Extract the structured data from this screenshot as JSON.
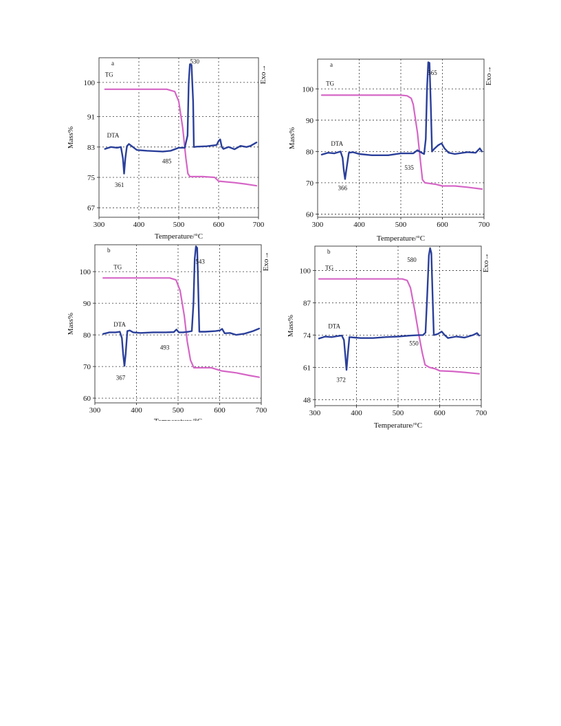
{
  "figure": {
    "colors": {
      "tg": "#d565c6",
      "dta": "#2a3f9a",
      "frame": "#444444",
      "grid": "#333333"
    }
  },
  "chart_data": [
    {
      "type": "line",
      "panel_label": "a",
      "xlabel": "Temperature/°C",
      "ylabel": "Mass%",
      "right_label": "Exo→",
      "xlim": [
        300,
        700
      ],
      "ylim": [
        64.5,
        106.5
      ],
      "xticks": [
        300,
        400,
        500,
        600,
        700
      ],
      "yticks": [
        67,
        75,
        83,
        91,
        100
      ],
      "grid": true,
      "series": [
        {
          "name": "TG",
          "label_at": [
            315,
            101.5
          ],
          "points": [
            [
              315,
              98.2
            ],
            [
              470,
              98.2
            ],
            [
              490,
              97.6
            ],
            [
              500,
              95
            ],
            [
              510,
              88
            ],
            [
              518,
              80
            ],
            [
              523,
              76
            ],
            [
              528,
              75.2
            ],
            [
              560,
              75.2
            ],
            [
              590,
              75
            ],
            [
              600,
              74
            ],
            [
              640,
              73.6
            ],
            [
              670,
              73.2
            ],
            [
              695,
              72.8
            ]
          ]
        },
        {
          "name": "DTA",
          "label_at": [
            320,
            85.5
          ],
          "points": [
            [
              315,
              82.5
            ],
            [
              330,
              83
            ],
            [
              345,
              82.8
            ],
            [
              355,
              83
            ],
            [
              360,
              80
            ],
            [
              363,
              76
            ],
            [
              366,
              80
            ],
            [
              370,
              83.2
            ],
            [
              375,
              83.8
            ],
            [
              385,
              83
            ],
            [
              395,
              82.2
            ],
            [
              420,
              82
            ],
            [
              460,
              81.8
            ],
            [
              480,
              82
            ],
            [
              500,
              82.8
            ],
            [
              515,
              82.8
            ],
            [
              522,
              86
            ],
            [
              525,
              100
            ],
            [
              528,
              104.8
            ],
            [
              532,
              104.6
            ],
            [
              536,
              95
            ],
            [
              538,
              83
            ],
            [
              545,
              83.1
            ],
            [
              570,
              83.2
            ],
            [
              595,
              83.5
            ],
            [
              600,
              84.6
            ],
            [
              604,
              85
            ],
            [
              608,
              83
            ],
            [
              612,
              82.5
            ],
            [
              625,
              83
            ],
            [
              640,
              82.4
            ],
            [
              655,
              83.3
            ],
            [
              670,
              83
            ],
            [
              680,
              83.3
            ],
            [
              695,
              84.2
            ]
          ]
        }
      ],
      "annotations": [
        {
          "text": "530",
          "at": [
            540,
            105
          ]
        },
        {
          "text": "485",
          "at": [
            470,
            78.7
          ]
        },
        {
          "text": "361",
          "at": [
            351,
            72.5
          ]
        }
      ]
    },
    {
      "type": "line",
      "panel_label": "a",
      "xlabel": "Temperature/°C",
      "ylabel": "Mass%",
      "right_label": "Exo→",
      "xlim": [
        300,
        700
      ],
      "ylim": [
        59,
        109.5
      ],
      "xticks": [
        300,
        400,
        500,
        600,
        700
      ],
      "yticks": [
        60,
        70,
        80,
        90,
        100
      ],
      "grid": true,
      "series": [
        {
          "name": "TG",
          "label_at": [
            320,
            101
          ],
          "points": [
            [
              310,
              98
            ],
            [
              500,
              98
            ],
            [
              515,
              97.8
            ],
            [
              525,
              97
            ],
            [
              530,
              95
            ],
            [
              540,
              86
            ],
            [
              548,
              76
            ],
            [
              552,
              71
            ],
            [
              558,
              70
            ],
            [
              585,
              69.5
            ],
            [
              600,
              69
            ],
            [
              630,
              69
            ],
            [
              660,
              68.6
            ],
            [
              695,
              68
            ]
          ]
        },
        {
          "name": "DTA",
          "label_at": [
            332,
            81.8
          ],
          "points": [
            [
              310,
              79
            ],
            [
              325,
              79.6
            ],
            [
              340,
              79.4
            ],
            [
              355,
              80
            ],
            [
              360,
              78
            ],
            [
              363,
              74
            ],
            [
              366,
              71.2
            ],
            [
              369,
              74
            ],
            [
              375,
              79.6
            ],
            [
              385,
              79.8
            ],
            [
              400,
              79.2
            ],
            [
              430,
              78.8
            ],
            [
              470,
              78.8
            ],
            [
              500,
              79.4
            ],
            [
              530,
              79.4
            ],
            [
              540,
              80.4
            ],
            [
              550,
              79.6
            ],
            [
              556,
              79.2
            ],
            [
              560,
              84
            ],
            [
              563,
              100
            ],
            [
              566,
              108.5
            ],
            [
              569,
              108.3
            ],
            [
              572,
              95
            ],
            [
              575,
              80
            ],
            [
              580,
              80.8
            ],
            [
              590,
              82
            ],
            [
              598,
              82.6
            ],
            [
              605,
              81
            ],
            [
              615,
              79.6
            ],
            [
              630,
              79.2
            ],
            [
              660,
              79.8
            ],
            [
              680,
              79.6
            ],
            [
              690,
              81
            ],
            [
              695,
              80
            ]
          ]
        }
      ],
      "annotations": [
        {
          "text": "565",
          "at": [
            576,
            104.5
          ]
        },
        {
          "text": "535",
          "at": [
            520,
            74.2
          ]
        },
        {
          "text": "366",
          "at": [
            360,
            67.7
          ]
        }
      ]
    },
    {
      "type": "line",
      "panel_label": "b",
      "xlabel": "Temperature/°C",
      "ylabel": "Mass%",
      "right_label": "Exo→",
      "xlim": [
        300,
        700
      ],
      "ylim": [
        58.5,
        108.5
      ],
      "xticks": [
        300,
        400,
        500,
        600,
        700
      ],
      "yticks": [
        60,
        70,
        80,
        90,
        100
      ],
      "grid": true,
      "series": [
        {
          "name": "TG",
          "label_at": [
            345,
            100.8
          ],
          "points": [
            [
              320,
              98
            ],
            [
              480,
              98
            ],
            [
              495,
              97.4
            ],
            [
              505,
              94
            ],
            [
              515,
              86
            ],
            [
              522,
              78
            ],
            [
              530,
              72
            ],
            [
              538,
              69.6
            ],
            [
              560,
              69.6
            ],
            [
              580,
              69.6
            ],
            [
              595,
              69
            ],
            [
              605,
              68.6
            ],
            [
              640,
              68
            ],
            [
              670,
              67.2
            ],
            [
              695,
              66.6
            ]
          ]
        },
        {
          "name": "DTA",
          "label_at": [
            345,
            82.6
          ],
          "points": [
            [
              320,
              80.3
            ],
            [
              335,
              80.8
            ],
            [
              350,
              80.8
            ],
            [
              360,
              81
            ],
            [
              365,
              79
            ],
            [
              368,
              74
            ],
            [
              371,
              70.2
            ],
            [
              374,
              74
            ],
            [
              378,
              81.2
            ],
            [
              384,
              81.4
            ],
            [
              392,
              80.8
            ],
            [
              410,
              80.6
            ],
            [
              440,
              80.8
            ],
            [
              470,
              80.8
            ],
            [
              490,
              80.9
            ],
            [
              496,
              81.7
            ],
            [
              502,
              80.8
            ],
            [
              512,
              80.8
            ],
            [
              525,
              81
            ],
            [
              533,
              81.2
            ],
            [
              537,
              90
            ],
            [
              540,
              104
            ],
            [
              543,
              108
            ],
            [
              546,
              107.5
            ],
            [
              548,
              98
            ],
            [
              551,
              81
            ],
            [
              565,
              81
            ],
            [
              590,
              81.2
            ],
            [
              600,
              81.4
            ],
            [
              606,
              81.9
            ],
            [
              612,
              80.5
            ],
            [
              625,
              80.6
            ],
            [
              640,
              80
            ],
            [
              660,
              80.4
            ],
            [
              680,
              81.2
            ],
            [
              695,
              82
            ]
          ]
        }
      ],
      "annotations": [
        {
          "text": "543",
          "at": [
            553,
            102.5
          ]
        },
        {
          "text": "493",
          "at": [
            468,
            75.3
          ]
        },
        {
          "text": "367",
          "at": [
            362,
            65.8
          ]
        }
      ]
    },
    {
      "type": "line",
      "panel_label": "b",
      "xlabel": "Temperature/°C",
      "ylabel": "Mass%",
      "right_label": "Exo→",
      "xlim": [
        300,
        700
      ],
      "ylim": [
        45.6,
        109.8
      ],
      "xticks": [
        300,
        400,
        500,
        600,
        700
      ],
      "yticks": [
        48,
        61,
        74,
        87,
        100
      ],
      "grid": true,
      "series": [
        {
          "name": "TG",
          "label_at": [
            325,
            100.3
          ],
          "points": [
            [
              310,
              96.6
            ],
            [
              510,
              96.6
            ],
            [
              522,
              96
            ],
            [
              530,
              93
            ],
            [
              540,
              84
            ],
            [
              550,
              74
            ],
            [
              558,
              67
            ],
            [
              565,
              62
            ],
            [
              575,
              61
            ],
            [
              590,
              60.4
            ],
            [
              600,
              59.6
            ],
            [
              630,
              59.4
            ],
            [
              660,
              59
            ],
            [
              695,
              58.4
            ]
          ]
        },
        {
          "name": "DTA",
          "label_at": [
            332,
            76.7
          ],
          "points": [
            [
              310,
              72.6
            ],
            [
              325,
              73.4
            ],
            [
              340,
              73.2
            ],
            [
              355,
              73.6
            ],
            [
              365,
              73.8
            ],
            [
              370,
              72
            ],
            [
              373,
              66
            ],
            [
              376,
              60
            ],
            [
              379,
              66
            ],
            [
              383,
              73.2
            ],
            [
              395,
              73
            ],
            [
              410,
              72.8
            ],
            [
              440,
              72.8
            ],
            [
              470,
              73.2
            ],
            [
              500,
              73.4
            ],
            [
              530,
              73.8
            ],
            [
              550,
              74
            ],
            [
              560,
              74
            ],
            [
              566,
              75
            ],
            [
              570,
              90
            ],
            [
              574,
              106
            ],
            [
              577,
              109
            ],
            [
              580,
              107
            ],
            [
              583,
              90
            ],
            [
              586,
              74
            ],
            [
              595,
              74.4
            ],
            [
              605,
              75.4
            ],
            [
              612,
              74
            ],
            [
              620,
              72.8
            ],
            [
              640,
              73.4
            ],
            [
              660,
              73
            ],
            [
              680,
              74
            ],
            [
              690,
              74.8
            ],
            [
              695,
              73.8
            ]
          ]
        }
      ],
      "annotations": [
        {
          "text": "580",
          "at": [
            533,
            103.4
          ]
        },
        {
          "text": "550",
          "at": [
            538,
            69.8
          ]
        },
        {
          "text": "372",
          "at": [
            363,
            55.2
          ]
        }
      ]
    }
  ]
}
